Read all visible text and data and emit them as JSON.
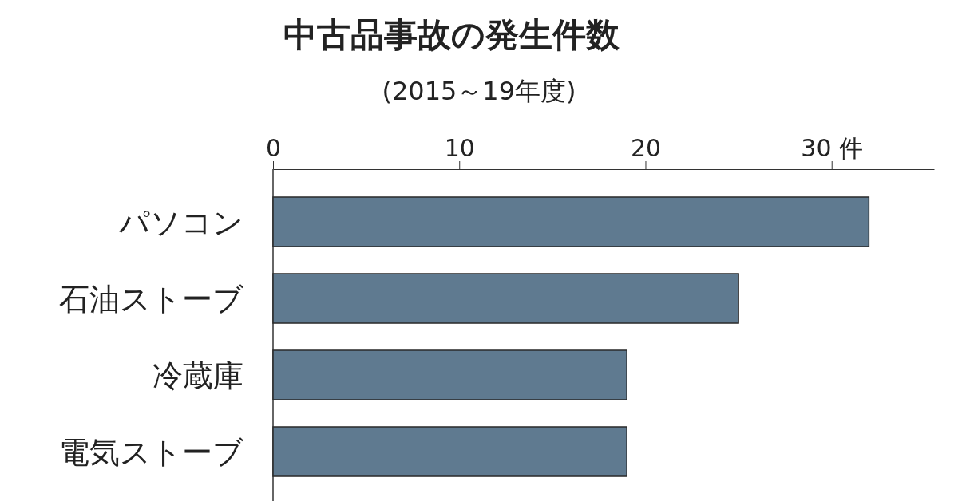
{
  "chart_data": {
    "type": "bar",
    "orientation": "horizontal",
    "title": "中古品事故の発生件数",
    "subtitle": "(2015～19年度)",
    "categories": [
      "パソコン",
      "石油ストーブ",
      "冷蔵庫",
      "電気ストーブ"
    ],
    "values": [
      32,
      25,
      19,
      19
    ],
    "color": "#5f7a90",
    "xlim": [
      0,
      35.5
    ],
    "xticks": [
      0,
      10,
      20,
      {
        "value": 30,
        "label": "30 件"
      }
    ],
    "grid": false
  }
}
